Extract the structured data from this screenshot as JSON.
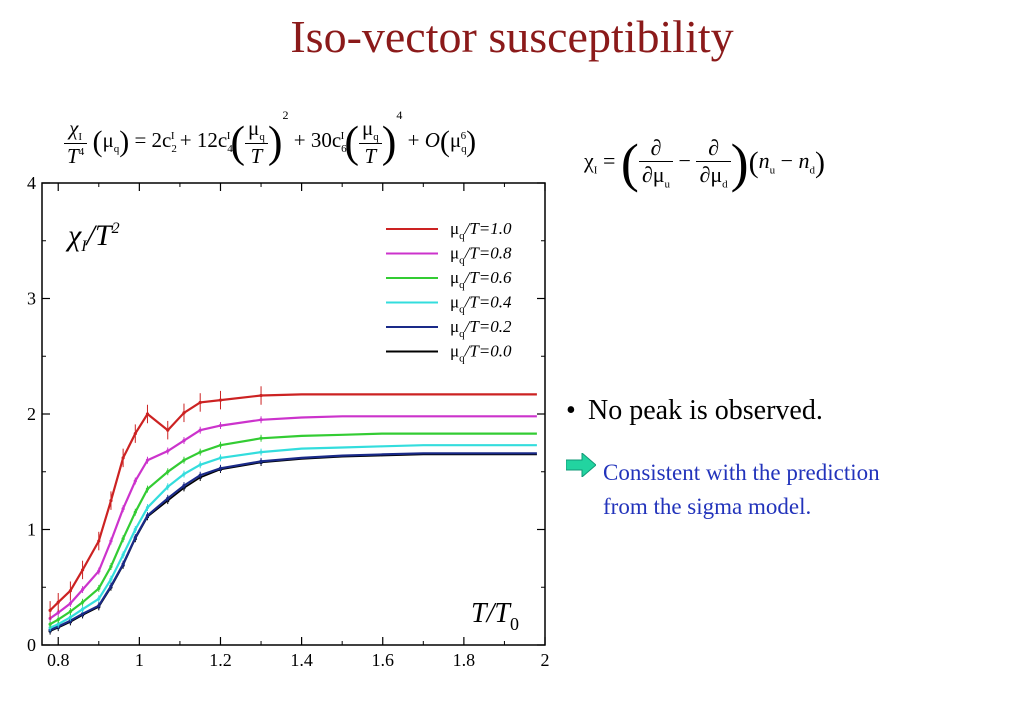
{
  "title": "Iso-vector susceptibility",
  "formula_top": {
    "lhs_num": "χ",
    "lhs_num_sub": "I",
    "lhs_den": "T",
    "lhs_den_sup": "4",
    "lhs_arg": "μ",
    "lhs_arg_sub": "q",
    "t1": "2c",
    "t1_sub": "2",
    "t1_sup": "I",
    "t2": "12c",
    "t2_sub": "4",
    "t2_sup": "I",
    "t2_pow": "2",
    "t3": "30c",
    "t3_sub": "6",
    "t3_sup": "I",
    "t3_pow": "4",
    "frac_num": "μ",
    "frac_num_sub": "q",
    "frac_den": "T",
    "order": "O",
    "order_arg": "μ",
    "order_sub": "q",
    "order_sup": "6"
  },
  "formula_right": {
    "lhs": "χ",
    "lhs_sub": "I",
    "partial": "∂",
    "mu": "μ",
    "sub_u": "u",
    "sub_d": "d",
    "n": "n"
  },
  "bullet": "No peak is observed.",
  "note_line1": "Consistent with the prediction",
  "note_line2": "from the sigma model.",
  "colors": {
    "title": "#8b1a1a",
    "note": "#2233bb",
    "arrow": "#22d4a0"
  },
  "chart_data": {
    "type": "line",
    "ylabel_text": "χ",
    "ylabel_sub": "I",
    "ylabel_rest": "/T",
    "ylabel_sup": "2",
    "xlabel_text": "T/T",
    "xlabel_sub": "0",
    "xlim": [
      0.76,
      2.0
    ],
    "ylim": [
      0,
      4
    ],
    "x_ticks": [
      "0.8",
      "1",
      "1.2",
      "1.4",
      "1.6",
      "1.8",
      "2"
    ],
    "y_ticks": [
      "0",
      "1",
      "2",
      "3",
      "4"
    ],
    "legend_position": "top-right",
    "x": [
      0.78,
      0.8,
      0.83,
      0.86,
      0.9,
      0.93,
      0.96,
      0.99,
      1.02,
      1.07,
      1.11,
      1.15,
      1.2,
      1.3,
      1.4,
      1.5,
      1.6,
      1.7,
      1.8,
      1.9,
      1.98
    ],
    "series": [
      {
        "name": "μ_q/T=1.0",
        "color": "#cc2222",
        "values": [
          0.3,
          0.37,
          0.47,
          0.65,
          0.9,
          1.25,
          1.62,
          1.83,
          2.0,
          1.86,
          2.01,
          2.1,
          2.12,
          2.16,
          2.17,
          2.17,
          2.17,
          2.17,
          2.17,
          2.17,
          2.17
        ]
      },
      {
        "name": "μ_q/T=0.8",
        "color": "#cc33cc",
        "values": [
          0.23,
          0.28,
          0.36,
          0.48,
          0.64,
          0.9,
          1.18,
          1.42,
          1.6,
          1.68,
          1.77,
          1.86,
          1.9,
          1.95,
          1.97,
          1.98,
          1.98,
          1.98,
          1.98,
          1.98,
          1.98
        ]
      },
      {
        "name": "μ_q/T=0.6",
        "color": "#33cc33",
        "values": [
          0.18,
          0.22,
          0.29,
          0.37,
          0.49,
          0.68,
          0.92,
          1.15,
          1.35,
          1.5,
          1.6,
          1.67,
          1.73,
          1.79,
          1.81,
          1.82,
          1.83,
          1.83,
          1.83,
          1.83,
          1.83
        ]
      },
      {
        "name": "μ_q/T=0.4",
        "color": "#33dddd",
        "values": [
          0.15,
          0.18,
          0.24,
          0.31,
          0.4,
          0.57,
          0.78,
          1.0,
          1.19,
          1.37,
          1.48,
          1.56,
          1.62,
          1.67,
          1.7,
          1.71,
          1.72,
          1.73,
          1.73,
          1.73,
          1.73
        ]
      },
      {
        "name": "μ_q/T=0.2",
        "color": "#1a2a88",
        "values": [
          0.13,
          0.16,
          0.21,
          0.27,
          0.34,
          0.51,
          0.7,
          0.93,
          1.12,
          1.27,
          1.38,
          1.47,
          1.53,
          1.59,
          1.62,
          1.64,
          1.65,
          1.66,
          1.66,
          1.66,
          1.66
        ]
      },
      {
        "name": "μ_q/T=0.0",
        "color": "#000000",
        "values": [
          0.12,
          0.15,
          0.2,
          0.26,
          0.33,
          0.5,
          0.69,
          0.92,
          1.11,
          1.25,
          1.36,
          1.45,
          1.52,
          1.58,
          1.61,
          1.63,
          1.64,
          1.65,
          1.65,
          1.65,
          1.65
        ]
      }
    ]
  }
}
